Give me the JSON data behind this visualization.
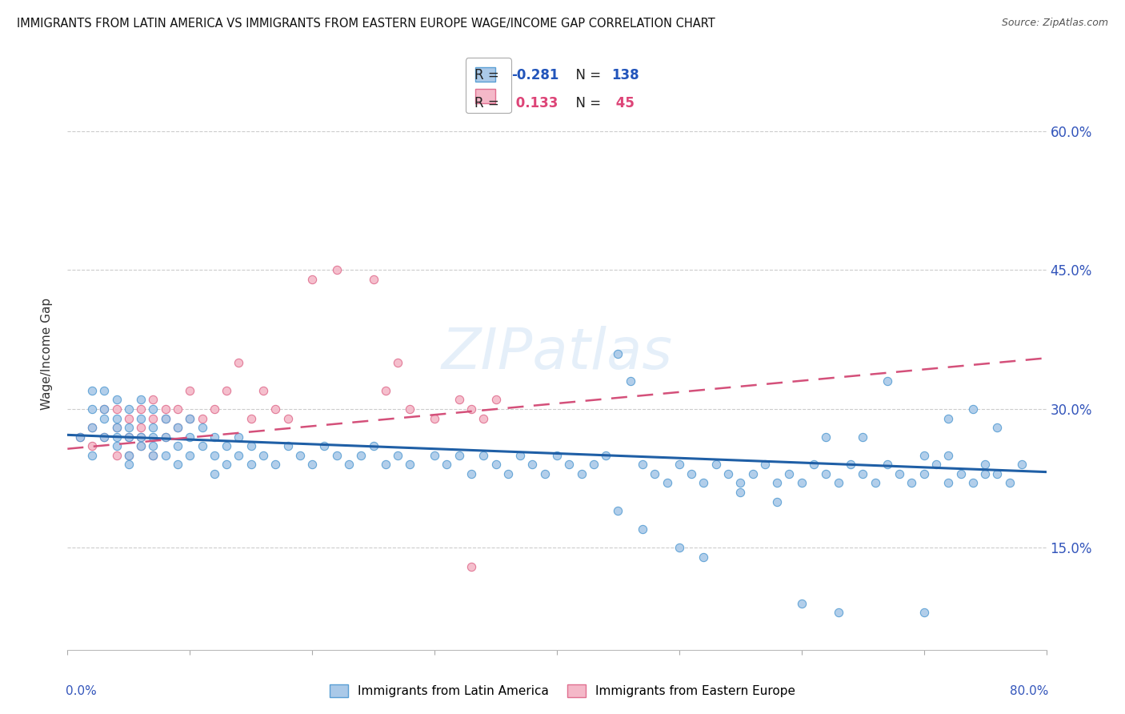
{
  "title": "IMMIGRANTS FROM LATIN AMERICA VS IMMIGRANTS FROM EASTERN EUROPE WAGE/INCOME GAP CORRELATION CHART",
  "source": "Source: ZipAtlas.com",
  "ylabel": "Wage/Income Gap",
  "ytick_labels": [
    "15.0%",
    "30.0%",
    "45.0%",
    "60.0%"
  ],
  "ytick_values": [
    0.15,
    0.3,
    0.45,
    0.6
  ],
  "xlim": [
    0.0,
    0.8
  ],
  "ylim": [
    0.04,
    0.68
  ],
  "watermark": "ZIPatlas",
  "series1_color": "#aac9e8",
  "series1_edge": "#5a9fd4",
  "series2_color": "#f4b8c8",
  "series2_edge": "#e07090",
  "trendline1_color": "#1f5fa6",
  "trendline2_color": "#d4507a",
  "background_color": "#ffffff",
  "grid_color": "#cccccc",
  "blue_x": [
    0.01,
    0.02,
    0.02,
    0.02,
    0.02,
    0.03,
    0.03,
    0.03,
    0.03,
    0.04,
    0.04,
    0.04,
    0.04,
    0.04,
    0.05,
    0.05,
    0.05,
    0.05,
    0.05,
    0.06,
    0.06,
    0.06,
    0.06,
    0.07,
    0.07,
    0.07,
    0.07,
    0.07,
    0.08,
    0.08,
    0.08,
    0.09,
    0.09,
    0.09,
    0.1,
    0.1,
    0.1,
    0.11,
    0.11,
    0.12,
    0.12,
    0.12,
    0.13,
    0.13,
    0.14,
    0.14,
    0.15,
    0.15,
    0.16,
    0.17,
    0.18,
    0.19,
    0.2,
    0.21,
    0.22,
    0.23,
    0.24,
    0.25,
    0.26,
    0.27,
    0.28,
    0.3,
    0.31,
    0.32,
    0.33,
    0.34,
    0.35,
    0.36,
    0.37,
    0.38,
    0.39,
    0.4,
    0.41,
    0.42,
    0.43,
    0.44,
    0.45,
    0.46,
    0.47,
    0.48,
    0.49,
    0.5,
    0.51,
    0.52,
    0.53,
    0.54,
    0.55,
    0.56,
    0.57,
    0.58,
    0.59,
    0.6,
    0.61,
    0.62,
    0.63,
    0.64,
    0.65,
    0.66,
    0.67,
    0.68,
    0.69,
    0.7,
    0.71,
    0.72,
    0.73,
    0.74,
    0.75,
    0.76,
    0.77,
    0.78,
    0.55,
    0.58,
    0.45,
    0.47,
    0.5,
    0.52,
    0.6,
    0.63,
    0.7,
    0.72,
    0.74,
    0.76,
    0.67,
    0.65,
    0.62,
    0.7,
    0.72,
    0.75
  ],
  "blue_y": [
    0.27,
    0.28,
    0.3,
    0.32,
    0.25,
    0.27,
    0.3,
    0.29,
    0.32,
    0.26,
    0.28,
    0.31,
    0.29,
    0.27,
    0.25,
    0.27,
    0.3,
    0.28,
    0.24,
    0.26,
    0.29,
    0.27,
    0.31,
    0.25,
    0.28,
    0.3,
    0.27,
    0.26,
    0.27,
    0.29,
    0.25,
    0.26,
    0.28,
    0.24,
    0.27,
    0.25,
    0.29,
    0.26,
    0.28,
    0.25,
    0.27,
    0.23,
    0.26,
    0.24,
    0.25,
    0.27,
    0.24,
    0.26,
    0.25,
    0.24,
    0.26,
    0.25,
    0.24,
    0.26,
    0.25,
    0.24,
    0.25,
    0.26,
    0.24,
    0.25,
    0.24,
    0.25,
    0.24,
    0.25,
    0.23,
    0.25,
    0.24,
    0.23,
    0.25,
    0.24,
    0.23,
    0.25,
    0.24,
    0.23,
    0.24,
    0.25,
    0.36,
    0.33,
    0.24,
    0.23,
    0.22,
    0.24,
    0.23,
    0.22,
    0.24,
    0.23,
    0.22,
    0.23,
    0.24,
    0.22,
    0.23,
    0.22,
    0.24,
    0.23,
    0.22,
    0.24,
    0.23,
    0.22,
    0.24,
    0.23,
    0.22,
    0.23,
    0.24,
    0.22,
    0.23,
    0.22,
    0.24,
    0.23,
    0.22,
    0.24,
    0.21,
    0.2,
    0.19,
    0.17,
    0.15,
    0.14,
    0.09,
    0.08,
    0.08,
    0.29,
    0.3,
    0.28,
    0.33,
    0.27,
    0.27,
    0.25,
    0.25,
    0.23
  ],
  "pink_x": [
    0.01,
    0.02,
    0.02,
    0.03,
    0.03,
    0.04,
    0.04,
    0.04,
    0.05,
    0.05,
    0.05,
    0.06,
    0.06,
    0.06,
    0.06,
    0.07,
    0.07,
    0.07,
    0.08,
    0.08,
    0.08,
    0.09,
    0.09,
    0.1,
    0.1,
    0.11,
    0.12,
    0.13,
    0.14,
    0.15,
    0.16,
    0.17,
    0.18,
    0.2,
    0.22,
    0.25,
    0.26,
    0.27,
    0.28,
    0.3,
    0.32,
    0.33,
    0.34,
    0.35,
    0.33
  ],
  "pink_y": [
    0.27,
    0.28,
    0.26,
    0.3,
    0.27,
    0.25,
    0.28,
    0.3,
    0.27,
    0.29,
    0.25,
    0.26,
    0.28,
    0.3,
    0.27,
    0.25,
    0.29,
    0.31,
    0.27,
    0.3,
    0.29,
    0.28,
    0.3,
    0.29,
    0.32,
    0.29,
    0.3,
    0.32,
    0.35,
    0.29,
    0.32,
    0.3,
    0.29,
    0.44,
    0.45,
    0.44,
    0.32,
    0.35,
    0.3,
    0.29,
    0.31,
    0.3,
    0.29,
    0.31,
    0.13
  ],
  "trendline_blue_x0": 0.0,
  "trendline_blue_x1": 0.8,
  "trendline_blue_y0": 0.272,
  "trendline_blue_y1": 0.232,
  "trendline_pink_x0": 0.0,
  "trendline_pink_x1": 0.8,
  "trendline_pink_y0": 0.257,
  "trendline_pink_y1": 0.355
}
